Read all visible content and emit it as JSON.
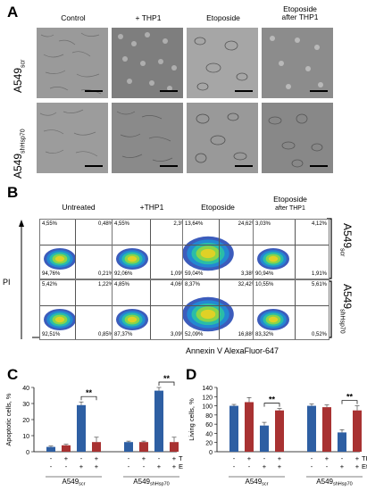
{
  "panelA": {
    "letter": "A",
    "columns": [
      "Control",
      "+ THP1",
      "Etoposide",
      "Etoposide\nafter THP1"
    ],
    "rows": [
      {
        "main": "A549",
        "sub": "scr"
      },
      {
        "main": "A549",
        "sub": "shHsp70"
      }
    ]
  },
  "panelB": {
    "letter": "B",
    "columns": [
      "Untreated",
      "+THP1",
      "Etoposide",
      "Etoposide",
      "after THP1"
    ],
    "y_axis": "PI",
    "x_axis": "Annexin V AlexaFluor-647",
    "rows": [
      {
        "main": "A549",
        "sub": "scr",
        "plots": [
          {
            "tl": "4,55%",
            "tr": "0,48%",
            "bl": "94,76%",
            "br": "0,21%"
          },
          {
            "tl": "4,55%",
            "tr": "2,3%",
            "bl": "92,06%",
            "br": "1,09%"
          },
          {
            "tl": "13,64%",
            "tr": "24,62%",
            "bl": "59,04%",
            "br": "3,38%"
          },
          {
            "tl": "3,03%",
            "tr": "4,12%",
            "bl": "90,94%",
            "br": "1,91%"
          }
        ]
      },
      {
        "main": "A549",
        "sub": "shHsp70",
        "plots": [
          {
            "tl": "5,42%",
            "tr": "1,22%",
            "bl": "92,51%",
            "br": "0,85%"
          },
          {
            "tl": "4,85%",
            "tr": "4,06%",
            "bl": "87,37%",
            "br": "3,09%"
          },
          {
            "tl": "8,37%",
            "tr": "32,42%",
            "bl": "52,09%",
            "br": "16,88%"
          },
          {
            "tl": "10,55%",
            "tr": "5,61%",
            "bl": "83,32%",
            "br": "0,52%"
          }
        ]
      }
    ]
  },
  "chart_data": [
    {
      "type": "bar",
      "panel": "C",
      "ylabel": "Apoptotic cells, %",
      "ylim": [
        0,
        40
      ],
      "yticks": [
        0,
        10,
        20,
        30,
        40
      ],
      "groups": [
        {
          "main": "A549",
          "sub": "scr"
        },
        {
          "main": "A549",
          "sub": "shHsp70"
        }
      ],
      "condition_rows": [
        {
          "name": "THP1",
          "values": [
            "-",
            "+",
            "-",
            "+"
          ]
        },
        {
          "name": "Eto",
          "values": [
            "-",
            "-",
            "+",
            "+"
          ]
        }
      ],
      "values": [
        [
          3,
          4,
          29,
          6
        ],
        [
          6,
          6,
          38,
          6
        ]
      ],
      "errors": [
        [
          0.5,
          0.6,
          2,
          3
        ],
        [
          0.6,
          0.6,
          2,
          3
        ]
      ],
      "colors": [
        "#2e5fa3",
        "#a83232",
        "#2e5fa3",
        "#a83232"
      ],
      "significance": [
        {
          "group": 0,
          "bars": [
            2,
            3
          ],
          "label": "**"
        },
        {
          "group": 1,
          "bars": [
            2,
            3
          ],
          "label": "**"
        }
      ]
    },
    {
      "type": "bar",
      "panel": "D",
      "ylabel": "Living cells, %",
      "ylim": [
        0,
        140
      ],
      "yticks": [
        0,
        20,
        40,
        60,
        80,
        100,
        120,
        140
      ],
      "groups": [
        {
          "main": "A549",
          "sub": "scr"
        },
        {
          "main": "A549",
          "sub": "shHsp70"
        }
      ],
      "condition_rows": [
        {
          "name": "THP1",
          "values": [
            "-",
            "+",
            "-",
            "+"
          ]
        },
        {
          "name": "Eto",
          "values": [
            "-",
            "-",
            "+",
            "+"
          ]
        }
      ],
      "values": [
        [
          100,
          108,
          57,
          90
        ],
        [
          100,
          97,
          42,
          90
        ]
      ],
      "errors": [
        [
          3,
          10,
          7,
          4
        ],
        [
          4,
          5,
          6,
          10
        ]
      ],
      "colors": [
        "#2e5fa3",
        "#a83232",
        "#2e5fa3",
        "#a83232"
      ],
      "significance": [
        {
          "group": 0,
          "bars": [
            2,
            3
          ],
          "label": "**"
        },
        {
          "group": 1,
          "bars": [
            2,
            3
          ],
          "label": "**"
        }
      ]
    }
  ],
  "letters": {
    "C": "C",
    "D": "D"
  }
}
